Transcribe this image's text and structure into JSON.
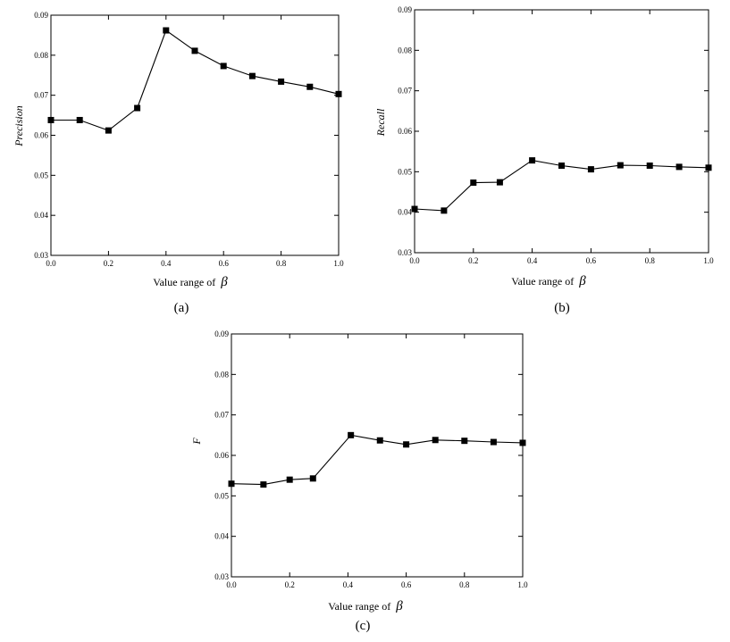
{
  "chart_data": [
    {
      "id": "a",
      "type": "line",
      "ylabel": "Precision",
      "xlabel": "Value range of",
      "xlabel_symbol": "β",
      "caption": "(a)",
      "xlim": [
        0.0,
        1.0
      ],
      "ylim": [
        0.03,
        0.09
      ],
      "xticks": [
        "0.0",
        "0.2",
        "0.4",
        "0.6",
        "0.8",
        "1.0"
      ],
      "yticks": [
        "0.03",
        "0.04",
        "0.05",
        "0.06",
        "0.07",
        "0.08",
        "0.09"
      ],
      "x": [
        0.0,
        0.1,
        0.2,
        0.3,
        0.4,
        0.5,
        0.6,
        0.7,
        0.8,
        0.9,
        1.0
      ],
      "y": [
        0.0638,
        0.0638,
        0.0612,
        0.0668,
        0.0862,
        0.0811,
        0.0773,
        0.0748,
        0.0734,
        0.0721,
        0.0703
      ]
    },
    {
      "id": "b",
      "type": "line",
      "ylabel": "Recall",
      "xlabel": "Value range of",
      "xlabel_symbol": "β",
      "caption": "(b)",
      "xlim": [
        0.0,
        1.0
      ],
      "ylim": [
        0.03,
        0.09
      ],
      "xticks": [
        "0.0",
        "0.2",
        "0.4",
        "0.6",
        "0.8",
        "1.0"
      ],
      "yticks": [
        "0.03",
        "0.04",
        "0.05",
        "0.06",
        "0.07",
        "0.08",
        "0.09"
      ],
      "x": [
        0.0,
        0.1,
        0.2,
        0.29,
        0.4,
        0.5,
        0.6,
        0.7,
        0.8,
        0.9,
        1.0
      ],
      "y": [
        0.0408,
        0.0404,
        0.0473,
        0.0474,
        0.0528,
        0.0515,
        0.0506,
        0.0516,
        0.0515,
        0.0512,
        0.051
      ]
    },
    {
      "id": "c",
      "type": "line",
      "ylabel": "F",
      "xlabel": "Value range of",
      "xlabel_symbol": "β",
      "caption": "(c)",
      "xlim": [
        0.0,
        1.0
      ],
      "ylim": [
        0.03,
        0.09
      ],
      "xticks": [
        "0.0",
        "0.2",
        "0.4",
        "0.6",
        "0.8",
        "1.0"
      ],
      "yticks": [
        "0.03",
        "0.04",
        "0.05",
        "0.06",
        "0.07",
        "0.08",
        "0.09"
      ],
      "x": [
        0.0,
        0.11,
        0.2,
        0.28,
        0.41,
        0.51,
        0.6,
        0.7,
        0.8,
        0.9,
        1.0
      ],
      "y": [
        0.053,
        0.0528,
        0.054,
        0.0543,
        0.065,
        0.0637,
        0.0627,
        0.0638,
        0.0636,
        0.0633,
        0.0631
      ]
    }
  ]
}
